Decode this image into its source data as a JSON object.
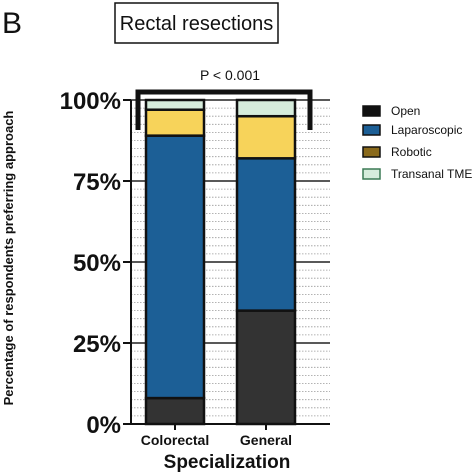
{
  "panel_label": "B",
  "colors": {
    "Open": "#333333",
    "Laparoscopic": "#1c5f96",
    "Robotic": "#f7d35a",
    "Transanal TME": "#d6ecdc",
    "Robotic_legend": "#8a6a1c",
    "Transanal_legend_border": "#3c7a55"
  },
  "chart_data": {
    "type": "bar",
    "stacked": true,
    "title": "Rectal resections",
    "xlabel": "Specialization",
    "ylabel": "Percentage of respondents preferring approach",
    "categories": [
      "Colorectal",
      "General"
    ],
    "series": [
      {
        "name": "Open",
        "values": [
          8,
          35
        ]
      },
      {
        "name": "Laparoscopic",
        "values": [
          81,
          47
        ]
      },
      {
        "name": "Robotic",
        "values": [
          8,
          13
        ]
      },
      {
        "name": "Transanal TME",
        "values": [
          3,
          5
        ]
      }
    ],
    "y_ticks": [
      "0%",
      "25%",
      "50%",
      "75%",
      "100%"
    ],
    "ylim": [
      0,
      100
    ],
    "grid": true,
    "legend": "right",
    "annotation": "P < 0.001"
  }
}
